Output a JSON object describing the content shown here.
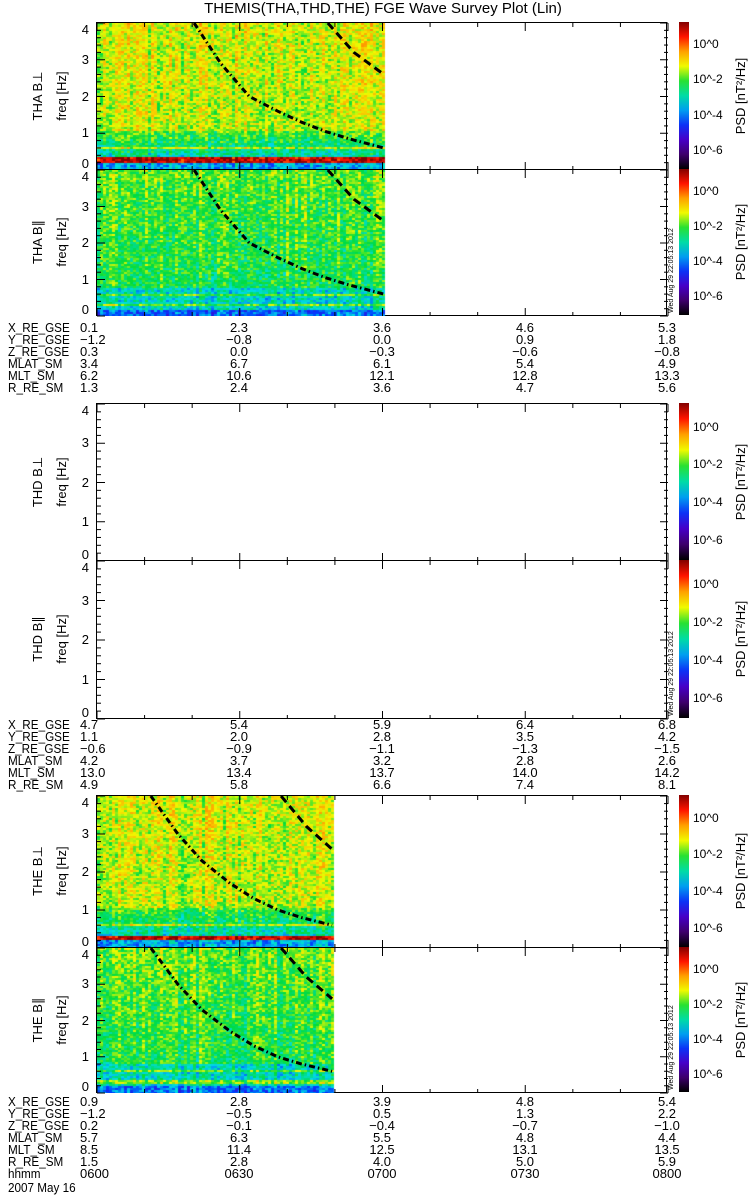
{
  "title": "THEMIS(THA,THD,THE) FGE Wave Survey Plot (Lin)",
  "timestamp": "Wed Aug 29 22:05:13 2012",
  "colorbar": {
    "label": "PSD [nT²/Hz]",
    "ticks": [
      "10^0",
      "10^-2",
      "10^-4",
      "10^-6"
    ],
    "range_log10": [
      -7,
      1.3
    ]
  },
  "chart_data": {
    "type": "heatmap",
    "x_range_minutes_after_0600": [
      0,
      120
    ],
    "ylim": [
      0,
      4
    ],
    "ylabel": "freq [Hz]",
    "yticks": [
      "0",
      "1",
      "2",
      "3",
      "4"
    ],
    "panels": [
      {
        "probe": "THA",
        "label": "THA B⊥",
        "component": "perp",
        "data_end_min": 60.3,
        "band_peak_hz": 0.3,
        "dashdot_curve": {
          "t": [
            20.4,
            26,
            32,
            38,
            43,
            48,
            53,
            60.3
          ],
          "f": [
            4,
            2.9,
            2.0,
            1.6,
            1.3,
            1.05,
            0.85,
            0.6
          ]
        },
        "dashed_curve": {
          "t": [
            48.5,
            54,
            60.3
          ],
          "f": [
            4,
            3.2,
            2.6
          ]
        }
      },
      {
        "probe": "THA",
        "label": "THA B∥",
        "component": "par",
        "data_end_min": 60.3,
        "band_peak_hz": 0.3,
        "dashdot_curve": {
          "t": [
            20.4,
            26,
            32,
            38,
            43,
            48,
            53,
            60.3
          ],
          "f": [
            4,
            2.9,
            2.0,
            1.6,
            1.3,
            1.05,
            0.85,
            0.6
          ]
        },
        "dashed_curve": {
          "t": [
            48.5,
            54,
            60.3
          ],
          "f": [
            4,
            3.2,
            2.6
          ]
        }
      },
      {
        "probe": "THD",
        "label": "THD B⊥",
        "component": "perp",
        "data_end_min": 0
      },
      {
        "probe": "THD",
        "label": "THD B∥",
        "component": "par",
        "data_end_min": 0
      },
      {
        "probe": "THE",
        "label": "THE B⊥",
        "component": "perp",
        "data_end_min": 49.4,
        "band_peak_hz": 0.3,
        "dashdot_curve": {
          "t": [
            11.3,
            17,
            22,
            28,
            33,
            38,
            43,
            49.4
          ],
          "f": [
            4,
            3.0,
            2.3,
            1.7,
            1.3,
            1.0,
            0.8,
            0.6
          ]
        },
        "dashed_curve": {
          "t": [
            38.7,
            44,
            49.4
          ],
          "f": [
            4,
            3.2,
            2.6
          ]
        }
      },
      {
        "probe": "THE",
        "label": "THE B∥",
        "component": "par",
        "data_end_min": 49.4,
        "band_peak_hz": 0.3,
        "dashdot_curve": {
          "t": [
            11.3,
            17,
            22,
            28,
            33,
            38,
            43,
            49.4
          ],
          "f": [
            4,
            3.0,
            2.3,
            1.7,
            1.3,
            1.0,
            0.8,
            0.6
          ]
        },
        "dashed_curve": {
          "t": [
            38.7,
            44,
            49.4
          ],
          "f": [
            4,
            3.2,
            2.6
          ]
        }
      }
    ]
  },
  "ephemeris": [
    {
      "rows": [
        {
          "name": "X_RE_GSE",
          "values": [
            "0.1",
            "2.3",
            "3.6",
            "4.6",
            "5.3"
          ]
        },
        {
          "name": "Y_RE_GSE",
          "values": [
            "−1.2",
            "−0.8",
            "0.0",
            "0.9",
            "1.8"
          ]
        },
        {
          "name": "Z_RE_GSE",
          "values": [
            "0.3",
            "0.0",
            "−0.3",
            "−0.6",
            "−0.8"
          ]
        },
        {
          "name": "MLAT_SM",
          "values": [
            "3.4",
            "6.7",
            "6.1",
            "5.4",
            "4.9"
          ]
        },
        {
          "name": "MLT_SM",
          "values": [
            "6.2",
            "10.6",
            "12.1",
            "12.8",
            "13.3"
          ]
        },
        {
          "name": "R_RE_SM",
          "values": [
            "1.3",
            "2.4",
            "3.6",
            "4.7",
            "5.6"
          ]
        }
      ]
    },
    {
      "rows": [
        {
          "name": "X_RE_GSE",
          "values": [
            "4.7",
            "5.4",
            "5.9",
            "6.4",
            "6.8"
          ]
        },
        {
          "name": "Y_RE_GSE",
          "values": [
            "1.1",
            "2.0",
            "2.8",
            "3.5",
            "4.2"
          ]
        },
        {
          "name": "Z_RE_GSE",
          "values": [
            "−0.6",
            "−0.9",
            "−1.1",
            "−1.3",
            "−1.5"
          ]
        },
        {
          "name": "MLAT_SM",
          "values": [
            "4.2",
            "3.7",
            "3.2",
            "2.8",
            "2.6"
          ]
        },
        {
          "name": "MLT_SM",
          "values": [
            "13.0",
            "13.4",
            "13.7",
            "14.0",
            "14.2"
          ]
        },
        {
          "name": "R_RE_SM",
          "values": [
            "4.9",
            "5.8",
            "6.6",
            "7.4",
            "8.1"
          ]
        }
      ]
    },
    {
      "rows": [
        {
          "name": "X_RE_GSE",
          "values": [
            "0.9",
            "2.8",
            "3.9",
            "4.8",
            "5.4"
          ]
        },
        {
          "name": "Y_RE_GSE",
          "values": [
            "−1.2",
            "−0.5",
            "0.5",
            "1.3",
            "2.2"
          ]
        },
        {
          "name": "Z_RE_GSE",
          "values": [
            "0.2",
            "−0.1",
            "−0.4",
            "−0.7",
            "−1.0"
          ]
        },
        {
          "name": "MLAT_SM",
          "values": [
            "5.7",
            "6.3",
            "5.5",
            "4.8",
            "4.4"
          ]
        },
        {
          "name": "MLT_SM",
          "values": [
            "8.5",
            "11.4",
            "12.5",
            "13.1",
            "13.5"
          ]
        },
        {
          "name": "R_RE_SM",
          "values": [
            "1.5",
            "2.8",
            "4.0",
            "5.0",
            "5.9"
          ]
        },
        {
          "name": "hhmm",
          "values": [
            "0600",
            "0630",
            "0700",
            "0730",
            "0800"
          ]
        }
      ]
    }
  ],
  "date": "2007 May 16"
}
